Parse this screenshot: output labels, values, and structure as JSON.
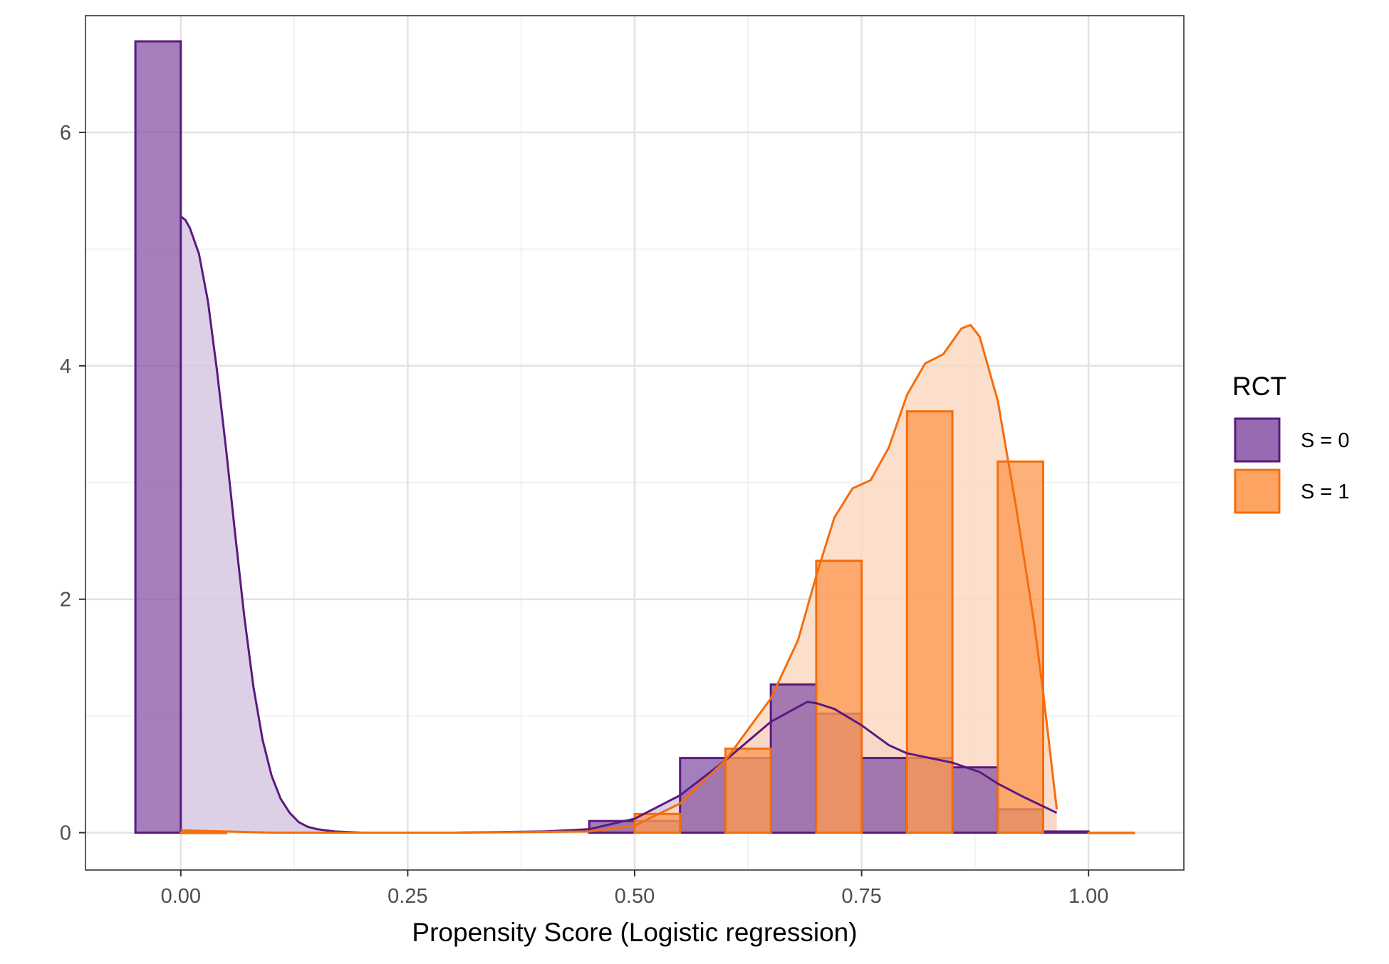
{
  "chart_data": {
    "type": "histogram",
    "xlabel": "Propensity Score (Logistic regression)",
    "ylabel": "",
    "xlim": [
      -0.105,
      1.105
    ],
    "ylim": [
      -0.32,
      7.0
    ],
    "x_ticks": [
      0.0,
      0.25,
      0.5,
      0.75,
      1.0
    ],
    "x_tick_labels": [
      "0.00",
      "0.25",
      "0.50",
      "0.75",
      "1.00"
    ],
    "y_ticks": [
      0,
      2,
      4,
      6
    ],
    "y_tick_labels": [
      "0",
      "2",
      "4",
      "6"
    ],
    "grid": true,
    "bin_width": 0.05,
    "legend": {
      "title": "RCT",
      "position": "right",
      "entries": [
        "S = 0",
        "S = 1"
      ]
    },
    "series": [
      {
        "name": "S = 0",
        "color": "#5b1a7e",
        "fill": "#8b5ba8",
        "density_fill": "#d7c8e2",
        "bins": [
          {
            "x0": -0.05,
            "x1": 0.0,
            "y": 6.78
          },
          {
            "x0": 0.0,
            "x1": 0.05,
            "y": 0.0
          },
          {
            "x0": 0.45,
            "x1": 0.5,
            "y": 0.1
          },
          {
            "x0": 0.5,
            "x1": 0.55,
            "y": 0.1
          },
          {
            "x0": 0.55,
            "x1": 0.6,
            "y": 0.64
          },
          {
            "x0": 0.6,
            "x1": 0.65,
            "y": 0.64
          },
          {
            "x0": 0.65,
            "x1": 0.7,
            "y": 1.27
          },
          {
            "x0": 0.7,
            "x1": 0.75,
            "y": 1.02
          },
          {
            "x0": 0.75,
            "x1": 0.8,
            "y": 0.64
          },
          {
            "x0": 0.8,
            "x1": 0.85,
            "y": 0.64
          },
          {
            "x0": 0.85,
            "x1": 0.9,
            "y": 0.56
          },
          {
            "x0": 0.9,
            "x1": 0.95,
            "y": 0.2
          },
          {
            "x0": 0.95,
            "x1": 1.0,
            "y": 0.01
          }
        ],
        "density": [
          [
            0.0,
            5.28
          ],
          [
            0.005,
            5.25
          ],
          [
            0.01,
            5.18
          ],
          [
            0.02,
            4.96
          ],
          [
            0.03,
            4.55
          ],
          [
            0.04,
            3.95
          ],
          [
            0.05,
            3.28
          ],
          [
            0.06,
            2.55
          ],
          [
            0.07,
            1.85
          ],
          [
            0.08,
            1.25
          ],
          [
            0.09,
            0.8
          ],
          [
            0.1,
            0.49
          ],
          [
            0.11,
            0.29
          ],
          [
            0.12,
            0.17
          ],
          [
            0.13,
            0.09
          ],
          [
            0.14,
            0.05
          ],
          [
            0.15,
            0.03
          ],
          [
            0.17,
            0.01
          ],
          [
            0.2,
            0.0
          ],
          [
            0.3,
            0.0
          ],
          [
            0.4,
            0.01
          ],
          [
            0.45,
            0.03
          ],
          [
            0.5,
            0.12
          ],
          [
            0.55,
            0.32
          ],
          [
            0.6,
            0.62
          ],
          [
            0.65,
            0.95
          ],
          [
            0.69,
            1.12
          ],
          [
            0.7,
            1.11
          ],
          [
            0.72,
            1.06
          ],
          [
            0.75,
            0.92
          ],
          [
            0.78,
            0.75
          ],
          [
            0.8,
            0.68
          ],
          [
            0.85,
            0.6
          ],
          [
            0.88,
            0.52
          ],
          [
            0.9,
            0.42
          ],
          [
            0.93,
            0.3
          ],
          [
            0.965,
            0.17
          ]
        ]
      },
      {
        "name": "S = 1",
        "color": "#f46d0e",
        "fill": "#fd9a52",
        "density_fill": "#fbd9c2",
        "bins": [
          {
            "x0": 0.0,
            "x1": 0.05,
            "y": 0.0
          },
          {
            "x0": 0.5,
            "x1": 0.55,
            "y": 0.16
          },
          {
            "x0": 0.6,
            "x1": 0.65,
            "y": 0.72
          },
          {
            "x0": 0.7,
            "x1": 0.75,
            "y": 2.33
          },
          {
            "x0": 0.8,
            "x1": 0.85,
            "y": 3.61
          },
          {
            "x0": 0.9,
            "x1": 0.95,
            "y": 3.18
          },
          {
            "x0": 1.0,
            "x1": 1.05,
            "y": 0.0
          }
        ],
        "density": [
          [
            0.0,
            0.02
          ],
          [
            0.1,
            0.0
          ],
          [
            0.3,
            0.0
          ],
          [
            0.45,
            0.01
          ],
          [
            0.5,
            0.06
          ],
          [
            0.55,
            0.25
          ],
          [
            0.6,
            0.62
          ],
          [
            0.65,
            1.15
          ],
          [
            0.68,
            1.65
          ],
          [
            0.7,
            2.2
          ],
          [
            0.72,
            2.7
          ],
          [
            0.74,
            2.95
          ],
          [
            0.76,
            3.02
          ],
          [
            0.78,
            3.3
          ],
          [
            0.8,
            3.75
          ],
          [
            0.82,
            4.02
          ],
          [
            0.84,
            4.1
          ],
          [
            0.86,
            4.32
          ],
          [
            0.87,
            4.35
          ],
          [
            0.88,
            4.25
          ],
          [
            0.9,
            3.7
          ],
          [
            0.92,
            2.8
          ],
          [
            0.94,
            1.8
          ],
          [
            0.95,
            1.2
          ],
          [
            0.965,
            0.2
          ]
        ]
      }
    ]
  }
}
